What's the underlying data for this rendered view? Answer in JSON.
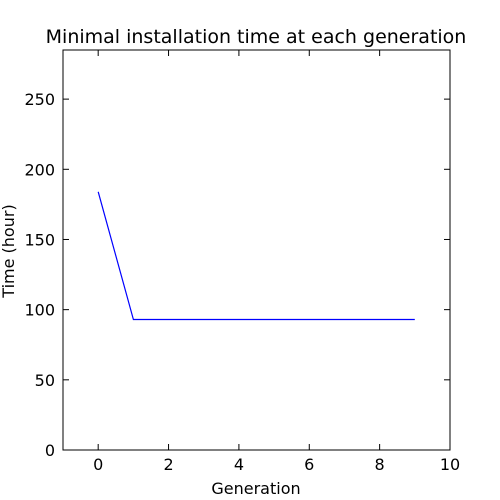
{
  "chart_data": {
    "type": "line",
    "title": "Minimal installation time at each generation",
    "xlabel": "Generation",
    "ylabel": "Time (hour)",
    "xlim": [
      -1,
      10
    ],
    "ylim": [
      0,
      285
    ],
    "x_ticks": [
      0,
      2,
      4,
      6,
      8,
      10
    ],
    "y_ticks": [
      0,
      50,
      100,
      150,
      200,
      250
    ],
    "grid": false,
    "legend": "none",
    "series": [
      {
        "color": "#0000ff",
        "x": [
          0,
          1,
          2,
          3,
          4,
          5,
          6,
          7,
          8,
          9
        ],
        "y": [
          184,
          93,
          93,
          93,
          93,
          93,
          93,
          93,
          93,
          93
        ]
      }
    ]
  }
}
